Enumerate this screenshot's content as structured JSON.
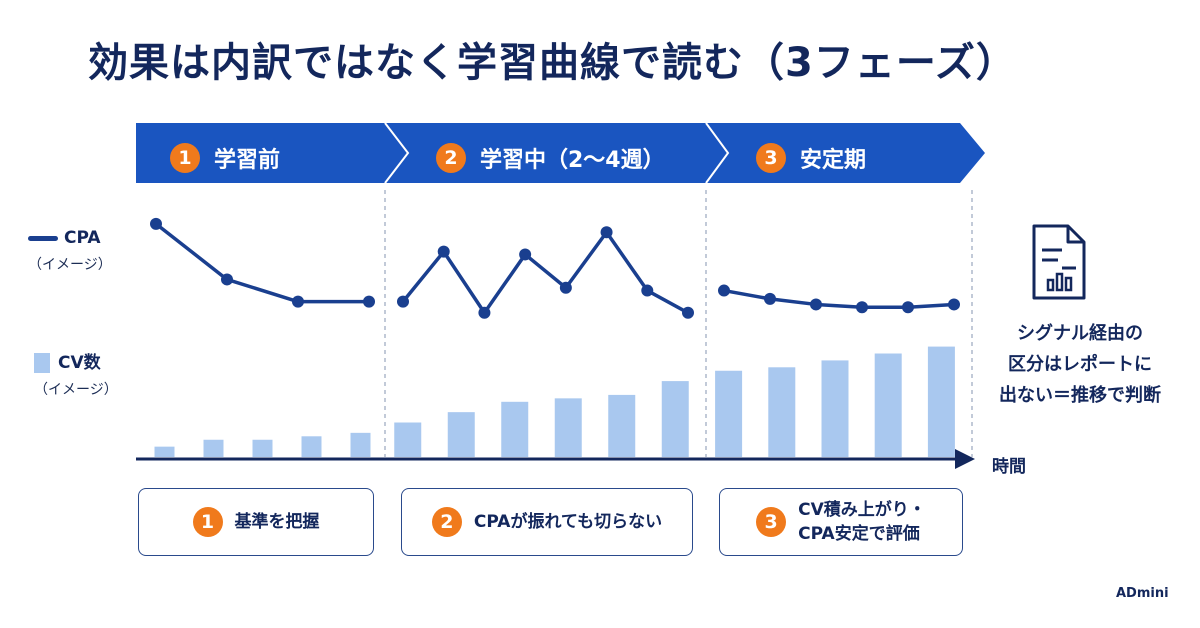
{
  "title": "効果は内訳ではなく学習曲線で読む（3フェーズ）",
  "phases": [
    {
      "num": "1",
      "label": "学習前"
    },
    {
      "num": "2",
      "label": "学習中（2〜4週）"
    },
    {
      "num": "3",
      "label": "安定期"
    }
  ],
  "legend": {
    "cpa_label": "CPA",
    "cpa_sub": "（イメージ）",
    "cv_label": "CV数",
    "cv_sub": "（イメージ）"
  },
  "x_axis_label": "時間",
  "note_lines": [
    "シグナル経由の",
    "区分はレポートに",
    "出ない＝推移で判断"
  ],
  "cards": [
    {
      "num": "1",
      "lines": [
        "基準を把握"
      ]
    },
    {
      "num": "2",
      "lines": [
        "CPAが振れても切らない"
      ]
    },
    {
      "num": "3",
      "lines": [
        "CV積み上がり・",
        "CPA安定で評価"
      ]
    }
  ],
  "brand": "ADmini",
  "colors": {
    "primary_blue": "#1a55c0",
    "navy": "#13275c",
    "orange": "#f07a1c",
    "bar_blue": "#a9c8ef"
  },
  "chart_data": {
    "type": "line+bar",
    "note": "conceptual (イメージ) values, relative scale",
    "phases": [
      {
        "phase": "1",
        "cpa": [
          90,
          70,
          62,
          62
        ],
        "cv": [
          3,
          5,
          5,
          6,
          7
        ]
      },
      {
        "phase": "2",
        "cpa": [
          62,
          80,
          58,
          79,
          67,
          87,
          66,
          58
        ],
        "cv": [
          10,
          13,
          16,
          17,
          18,
          22
        ]
      },
      {
        "phase": "3",
        "cpa": [
          66,
          63,
          61,
          60,
          60,
          61
        ],
        "cv": [
          25,
          26,
          28,
          30,
          32
        ]
      }
    ]
  }
}
